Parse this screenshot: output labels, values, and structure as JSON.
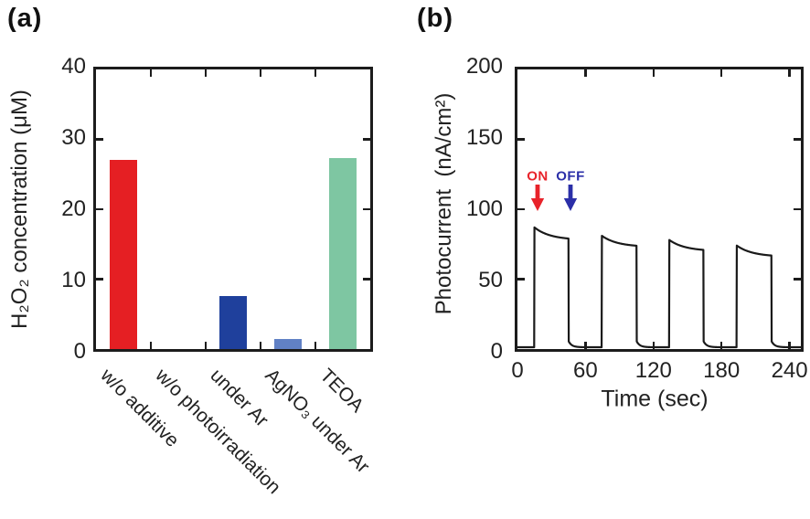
{
  "figure": {
    "panel_a_label": "(a)",
    "panel_b_label": "(b)"
  },
  "chart_data": [
    {
      "panel": "a",
      "type": "bar",
      "ylabel": "H₂O₂ concentration (μM)",
      "categories": [
        "w/o additive",
        "w/o photoirradiation",
        "under Ar",
        "AgNO₃ under Ar",
        "TEOA"
      ],
      "values": [
        27.0,
        0,
        7.6,
        1.4,
        27.3
      ],
      "bar_colors": [
        "#e51f23",
        "#e51f23",
        "#1f409c",
        "#6181c5",
        "#7ec6a2"
      ],
      "ylim": [
        0,
        40
      ],
      "yticks": [
        0,
        10,
        20,
        30,
        40
      ],
      "grid": false,
      "axis_color": "#1c1c1c"
    },
    {
      "panel": "b",
      "type": "line",
      "ylabel": "Photocurrent  (nA/cm²)",
      "xlabel": "Time (sec)",
      "ylim": [
        0,
        200
      ],
      "xlim": [
        0,
        250
      ],
      "yticks": [
        0,
        50,
        100,
        150,
        200
      ],
      "xticks": [
        0,
        60,
        120,
        180,
        240
      ],
      "grid": false,
      "line_color": "#1a1a1a",
      "baseline_nA": 1.3,
      "pulses": [
        {
          "on_sec": 15,
          "off_sec": 45,
          "peak_nA": 87,
          "end_nA": 78
        },
        {
          "on_sec": 74.5,
          "off_sec": 105,
          "peak_nA": 81,
          "end_nA": 73
        },
        {
          "on_sec": 134,
          "off_sec": 164,
          "peak_nA": 78,
          "end_nA": 70
        },
        {
          "on_sec": 193.5,
          "off_sec": 224,
          "peak_nA": 74,
          "end_nA": 66
        }
      ],
      "annotations": {
        "on_label": "ON",
        "off_label": "OFF",
        "on_color": "#e8232a",
        "off_color": "#2b2fa8",
        "on_arrow_sec": 19,
        "off_arrow_sec": 47
      }
    }
  ]
}
